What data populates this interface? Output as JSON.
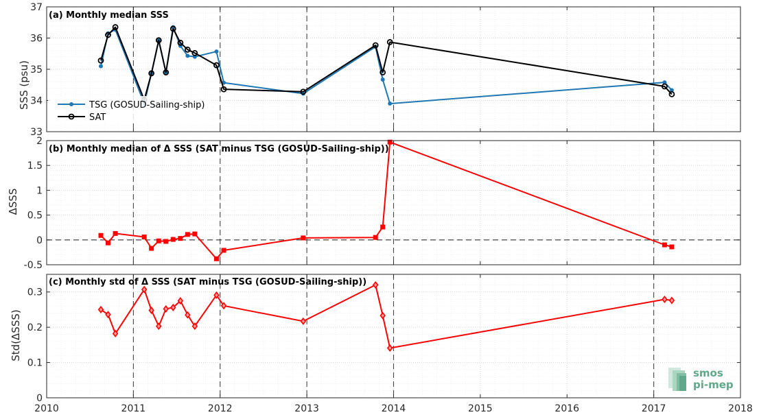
{
  "chart_data": [
    {
      "type": "line",
      "title": "(a) Monthly median SSS",
      "xlabel": "",
      "ylabel": "SSS (psu)",
      "xlim": [
        2010,
        2018
      ],
      "ylim": [
        33,
        37
      ],
      "yticks": [
        33,
        34,
        35,
        36,
        37
      ],
      "legend_position": "bottom-left",
      "grid": true,
      "series": [
        {
          "name": "TSG (GOSUD-Sailing-ship)",
          "color": "#1f77b4",
          "marker": "dot",
          "x": [
            2010.625,
            2010.708,
            2010.792,
            2011.125,
            2011.208,
            2011.292,
            2011.375,
            2011.458,
            2011.542,
            2011.625,
            2011.708,
            2011.958,
            2012.042,
            2012.958,
            2013.792,
            2013.875,
            2013.958,
            2017.125,
            2017.208
          ],
          "y": [
            35.1,
            36.15,
            36.27,
            33.9,
            34.87,
            35.92,
            34.9,
            36.35,
            35.75,
            35.43,
            35.4,
            35.57,
            34.57,
            34.22,
            35.72,
            34.67,
            33.9,
            34.58,
            34.33
          ]
        },
        {
          "name": "SAT",
          "color": "#000000",
          "marker": "circle",
          "x": [
            2010.625,
            2010.708,
            2010.792,
            2011.125,
            2011.208,
            2011.292,
            2011.375,
            2011.458,
            2011.542,
            2011.625,
            2011.708,
            2011.958,
            2012.042,
            2012.958,
            2013.792,
            2013.875,
            2013.958,
            2017.125,
            2017.208
          ],
          "y": [
            35.28,
            36.1,
            36.35,
            34.02,
            34.87,
            35.93,
            34.9,
            36.3,
            35.85,
            35.63,
            35.52,
            35.13,
            34.36,
            34.28,
            35.77,
            34.9,
            35.87,
            34.45,
            34.2
          ]
        }
      ],
      "dashed_vertical_lines": [
        2011,
        2012,
        2013,
        2014,
        2017
      ]
    },
    {
      "type": "line",
      "title": "(b) Monthly median of Δ SSS (SAT minus TSG (GOSUD-Sailing-ship))",
      "xlabel": "",
      "ylabel": "ΔSSS",
      "xlim": [
        2010,
        2018
      ],
      "ylim": [
        -0.5,
        2
      ],
      "yticks": [
        -0.5,
        0,
        0.5,
        1,
        1.5,
        2
      ],
      "grid": true,
      "reference_line": 0,
      "series": [
        {
          "color": "#ff0000",
          "marker": "square",
          "x": [
            2010.625,
            2010.708,
            2010.792,
            2011.125,
            2011.208,
            2011.292,
            2011.375,
            2011.458,
            2011.542,
            2011.625,
            2011.708,
            2011.958,
            2012.042,
            2012.958,
            2013.792,
            2013.875,
            2013.958,
            2017.125,
            2017.208
          ],
          "y": [
            0.09,
            -0.06,
            0.13,
            0.06,
            -0.17,
            -0.02,
            -0.03,
            0.01,
            0.03,
            0.11,
            0.12,
            -0.38,
            -0.21,
            0.04,
            0.05,
            0.26,
            1.97,
            -0.1,
            -0.14
          ]
        }
      ],
      "dashed_vertical_lines": [
        2011,
        2012,
        2013,
        2014,
        2017
      ]
    },
    {
      "type": "line",
      "title": "(c) Monthly std of Δ SSS (SAT minus TSG (GOSUD-Sailing-ship))",
      "xlabel": "",
      "ylabel": "Std(ΔSSS)",
      "xlim": [
        2010,
        2018
      ],
      "ylim": [
        0,
        0.35
      ],
      "yticks": [
        0,
        0.1,
        0.2,
        0.3
      ],
      "xticks": [
        2010,
        2011,
        2012,
        2013,
        2014,
        2015,
        2016,
        2017,
        2018
      ],
      "grid": true,
      "series": [
        {
          "color": "#ff0000",
          "marker": "diamond",
          "x": [
            2010.625,
            2010.708,
            2010.792,
            2011.125,
            2011.208,
            2011.292,
            2011.375,
            2011.458,
            2011.542,
            2011.625,
            2011.708,
            2011.958,
            2012.042,
            2012.958,
            2013.792,
            2013.875,
            2013.958,
            2017.125,
            2017.208
          ],
          "y": [
            0.25,
            0.236,
            0.182,
            0.307,
            0.248,
            0.203,
            0.252,
            0.256,
            0.275,
            0.235,
            0.203,
            0.291,
            0.261,
            0.217,
            0.32,
            0.233,
            0.141,
            0.279,
            0.276
          ]
        }
      ],
      "dashed_vertical_lines": [
        2011,
        2012,
        2013,
        2014,
        2017
      ]
    }
  ],
  "logo": {
    "line1": "smos",
    "line2": "pi-mep",
    "color": "#5fa88a"
  }
}
